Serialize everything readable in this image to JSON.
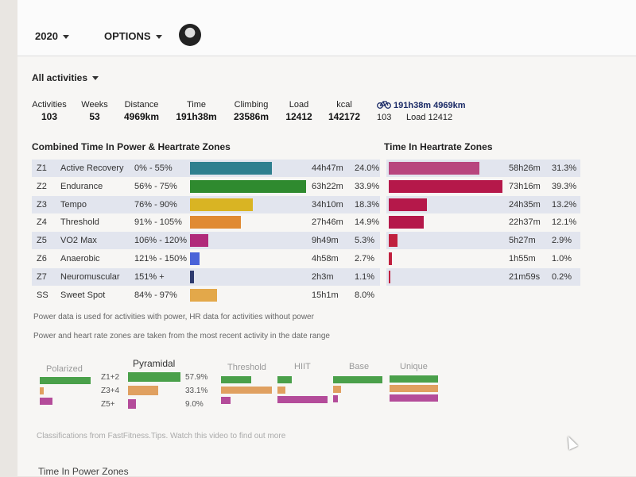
{
  "header": {
    "year": "2020",
    "options": "OPTIONS"
  },
  "filter": {
    "label": "All activities"
  },
  "stats": [
    {
      "label": "Activities",
      "value": "103"
    },
    {
      "label": "Weeks",
      "value": "53"
    },
    {
      "label": "Distance",
      "value": "4969km"
    },
    {
      "label": "Time",
      "value": "191h38m"
    },
    {
      "label": "Climbing",
      "value": "23586m"
    },
    {
      "label": "Load",
      "value": "12412"
    },
    {
      "label": "kcal",
      "value": "142172"
    }
  ],
  "ride_summary": {
    "icon": "bicycle-icon",
    "time": "191h38m",
    "distance": "4969km",
    "count": "103",
    "load_label": "Load 12412"
  },
  "combined": {
    "title": "Combined Time In Power & Heartrate Zones",
    "rows": [
      {
        "id": "Z1",
        "name": "Active Recovery",
        "range": "0% - 55%",
        "time": "44h47m",
        "pct": "24.0%",
        "value": 24.0,
        "color": "#2e7f8f"
      },
      {
        "id": "Z2",
        "name": "Endurance",
        "range": "56% - 75%",
        "time": "63h22m",
        "pct": "33.9%",
        "value": 33.9,
        "color": "#2f8a2f"
      },
      {
        "id": "Z3",
        "name": "Tempo",
        "range": "76% - 90%",
        "time": "34h10m",
        "pct": "18.3%",
        "value": 18.3,
        "color": "#d9b423"
      },
      {
        "id": "Z4",
        "name": "Threshold",
        "range": "91% - 105%",
        "time": "27h46m",
        "pct": "14.9%",
        "value": 14.9,
        "color": "#e08a33"
      },
      {
        "id": "Z5",
        "name": "VO2 Max",
        "range": "106% - 120%",
        "time": "9h49m",
        "pct": "5.3%",
        "value": 5.3,
        "color": "#b02a7a"
      },
      {
        "id": "Z6",
        "name": "Anaerobic",
        "range": "121% - 150%",
        "time": "4h58m",
        "pct": "2.7%",
        "value": 2.7,
        "color": "#4a63d8"
      },
      {
        "id": "Z7",
        "name": "Neuromuscular",
        "range": "151% +",
        "time": "2h3m",
        "pct": "1.1%",
        "value": 1.1,
        "color": "#2d3a6e"
      },
      {
        "id": "SS",
        "name": "Sweet Spot",
        "range": "84% - 97%",
        "time": "15h1m",
        "pct": "8.0%",
        "value": 8.0,
        "color": "#e3a84a"
      }
    ]
  },
  "heartrate": {
    "title": "Time In Heartrate Zones",
    "rows": [
      {
        "time": "58h26m",
        "pct": "31.3%",
        "value": 31.3,
        "color": "#b8457e"
      },
      {
        "time": "73h16m",
        "pct": "39.3%",
        "value": 39.3,
        "color": "#b5184a"
      },
      {
        "time": "24h35m",
        "pct": "13.2%",
        "value": 13.2,
        "color": "#b5184a"
      },
      {
        "time": "22h37m",
        "pct": "12.1%",
        "value": 12.1,
        "color": "#b5184a"
      },
      {
        "time": "5h27m",
        "pct": "2.9%",
        "value": 2.9,
        "color": "#c0203e"
      },
      {
        "time": "1h55m",
        "pct": "1.0%",
        "value": 1.0,
        "color": "#c0203e"
      },
      {
        "time": "21m59s",
        "pct": "0.2%",
        "value": 0.2,
        "color": "#c0203e"
      }
    ]
  },
  "notes": [
    "Power data is used for activities with power, HR data for activities without power",
    "Power and heart rate zones are taken from the most recent activity in the date range"
  ],
  "classifications": {
    "polarized": "Polarized",
    "pyramidal": "Pyramidal",
    "threshold": "Threshold",
    "hiit": "HIIT",
    "base": "Base",
    "unique": "Unique",
    "rows": [
      {
        "label": "Z1+2",
        "pct": "57.9%",
        "value": 57.9,
        "color": "#4aa04a"
      },
      {
        "label": "Z3+4",
        "pct": "33.1%",
        "value": 33.1,
        "color": "#e0a060"
      },
      {
        "label": "Z5+",
        "pct": "9.0%",
        "value": 9.0,
        "color": "#b44c9a"
      }
    ],
    "footer": "Classifications from FastFitness.Tips. Watch this video to find out more"
  },
  "next_section": "Time In Power Zones"
}
